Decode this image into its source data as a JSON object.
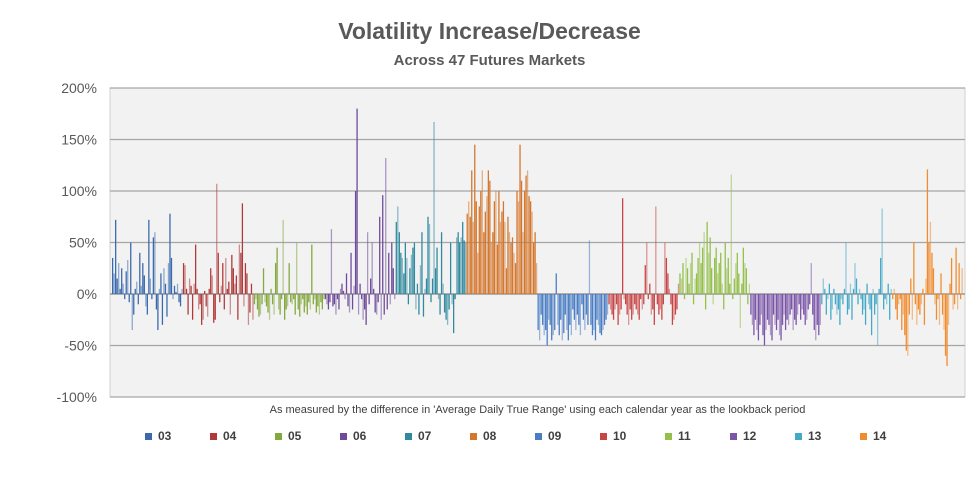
{
  "chart_data": {
    "type": "bar",
    "title": "Volatility Increase/Decrease",
    "subtitle": "Across 47 Futures Markets",
    "caption": "As measured by the difference in 'Average  Daily True Range' using each calendar year as the lookback period",
    "xlabel": "",
    "ylabel": "",
    "ylim": [
      -100,
      200
    ],
    "yticks": [
      -100,
      -50,
      0,
      50,
      100,
      150,
      200
    ],
    "ytick_labels": [
      "-100%",
      "-50%",
      "0%",
      "50%",
      "100%",
      "150%",
      "200%"
    ],
    "grid": true,
    "legend_placement": "bottom",
    "series": [
      {
        "name": "03",
        "color": "#3a6aad",
        "values": [
          35,
          20,
          72,
          15,
          30,
          5,
          25,
          10,
          -5,
          22,
          33,
          -8,
          50,
          -35,
          -20,
          5,
          12,
          -10,
          40,
          8,
          30,
          18,
          -12,
          -20,
          72,
          15,
          -5,
          55,
          60,
          -15,
          -35,
          5,
          20,
          -30,
          25,
          10,
          -22,
          30,
          78,
          35,
          -5,
          8,
          2,
          10,
          -8,
          -12,
          5
        ]
      },
      {
        "name": "04",
        "color": "#b03a3a",
        "values": [
          30,
          28,
          5,
          -20,
          15,
          8,
          -25,
          10,
          48,
          5,
          -15,
          -10,
          -30,
          -25,
          3,
          -12,
          -22,
          5,
          25,
          18,
          -28,
          -25,
          107,
          40,
          -8,
          8,
          30,
          -15,
          35,
          5,
          12,
          -20,
          38,
          25,
          10,
          18,
          -25,
          48,
          40,
          88,
          -12,
          30,
          20,
          -30,
          -18,
          10,
          -25
        ]
      },
      {
        "name": "05",
        "color": "#83a83e",
        "values": [
          -10,
          -5,
          -15,
          -22,
          -20,
          -10,
          25,
          -8,
          -12,
          -18,
          -25,
          5,
          -10,
          -20,
          30,
          45,
          -15,
          -20,
          -5,
          72,
          -25,
          -15,
          -12,
          30,
          -8,
          -10,
          -5,
          -20,
          50,
          -15,
          -22,
          -10,
          -5,
          -18,
          -12,
          -20,
          -8,
          -15,
          48,
          -10,
          -5,
          -18,
          -12,
          -20,
          -8,
          -15,
          -5
        ]
      },
      {
        "name": "06",
        "color": "#6e4a9a",
        "values": [
          -5,
          -10,
          -15,
          -8,
          63,
          -12,
          -10,
          -20,
          -5,
          -15,
          5,
          10,
          3,
          -5,
          20,
          -12,
          -18,
          40,
          -15,
          8,
          100,
          180,
          -20,
          10,
          -5,
          -25,
          -15,
          -30,
          60,
          -10,
          15,
          50,
          5,
          -18,
          -20,
          -8,
          75,
          -25,
          96,
          -20,
          132,
          -15,
          40,
          -10,
          50,
          25,
          -5
        ]
      },
      {
        "name": "07",
        "color": "#31899e",
        "values": [
          70,
          85,
          60,
          40,
          35,
          20,
          50,
          35,
          -10,
          25,
          38,
          45,
          50,
          -15,
          10,
          -20,
          28,
          60,
          -22,
          5,
          15,
          75,
          68,
          -8,
          15,
          167,
          25,
          45,
          -5,
          -20,
          60,
          10,
          -18,
          -25,
          -30,
          -15,
          50,
          -10,
          -38,
          -5,
          55,
          60,
          50,
          55,
          70,
          52,
          50
        ]
      },
      {
        "name": "08",
        "color": "#d4762c",
        "values": [
          78,
          90,
          75,
          120,
          70,
          145,
          90,
          40,
          85,
          100,
          120,
          60,
          80,
          95,
          120,
          110,
          50,
          60,
          90,
          100,
          48,
          100,
          70,
          80,
          90,
          70,
          25,
          75,
          60,
          50,
          55,
          40,
          30,
          100,
          90,
          145,
          110,
          60,
          100,
          115,
          120,
          95,
          90,
          80,
          50,
          60,
          30
        ]
      },
      {
        "name": "09",
        "color": "#4a7dc4",
        "values": [
          -35,
          -45,
          -20,
          -30,
          -40,
          -35,
          -50,
          -25,
          -30,
          -45,
          -40,
          -35,
          20,
          -30,
          -40,
          -25,
          -45,
          -38,
          -20,
          -35,
          -45,
          -30,
          -40,
          -15,
          -25,
          -35,
          -20,
          -30,
          -40,
          -10,
          -25,
          -35,
          -20,
          -30,
          52,
          -30,
          -40,
          -35,
          -45,
          -25,
          -30,
          -38,
          -40,
          -35,
          -30,
          -25,
          -20
        ]
      },
      {
        "name": "10",
        "color": "#c84545",
        "values": [
          -10,
          -15,
          -20,
          -25,
          -15,
          -10,
          -30,
          -20,
          -15,
          93,
          -5,
          -10,
          -20,
          -30,
          -15,
          -25,
          -20,
          -10,
          -15,
          -20,
          -25,
          -5,
          -15,
          -10,
          28,
          50,
          -5,
          10,
          -20,
          -15,
          -30,
          85,
          -10,
          -20,
          -15,
          -25,
          -10,
          50,
          35,
          20,
          5,
          -10,
          -30,
          -25,
          -20,
          -15,
          10
        ]
      },
      {
        "name": "11",
        "color": "#93bf4a",
        "values": [
          20,
          15,
          30,
          -5,
          35,
          25,
          10,
          30,
          40,
          -10,
          15,
          20,
          35,
          50,
          30,
          45,
          60,
          -15,
          70,
          40,
          55,
          25,
          -10,
          35,
          45,
          20,
          30,
          40,
          10,
          -15,
          50,
          25,
          35,
          10,
          116,
          -5,
          15,
          30,
          40,
          20,
          -33,
          10,
          45,
          30,
          25,
          -10,
          10
        ]
      },
      {
        "name": "12",
        "color": "#7b55a8",
        "values": [
          -20,
          -30,
          -40,
          -25,
          -35,
          -45,
          -30,
          -20,
          -40,
          -50,
          -35,
          -25,
          -30,
          -40,
          -45,
          -20,
          -30,
          -35,
          -25,
          -40,
          -45,
          -30,
          -20,
          -35,
          -25,
          -30,
          -20,
          -15,
          -35,
          -25,
          -30,
          -20,
          -10,
          -25,
          -15,
          -20,
          -30,
          -25,
          -15,
          -10,
          30,
          -20,
          -35,
          -45,
          -30,
          -40,
          -30
        ]
      },
      {
        "name": "13",
        "color": "#43a9c8",
        "values": [
          -10,
          15,
          5,
          -20,
          -5,
          10,
          -25,
          -15,
          5,
          -10,
          -20,
          -15,
          -30,
          -5,
          -10,
          5,
          50,
          -20,
          -15,
          10,
          -25,
          5,
          30,
          15,
          -10,
          5,
          -5,
          -20,
          -15,
          -30,
          10,
          -10,
          -15,
          -40,
          5,
          -20,
          -10,
          -50,
          5,
          35,
          83,
          -15,
          -5,
          -10,
          10,
          -25,
          5
        ]
      },
      {
        "name": "14",
        "color": "#f08c2e",
        "values": [
          -5,
          5,
          -15,
          -25,
          -10,
          -5,
          -35,
          -20,
          -40,
          -55,
          -60,
          -20,
          15,
          -25,
          50,
          -10,
          -30,
          -15,
          -20,
          -10,
          5,
          -30,
          15,
          121,
          50,
          70,
          40,
          25,
          -10,
          -25,
          -5,
          -30,
          20,
          -20,
          -35,
          -60,
          -70,
          -30,
          10,
          35,
          -15,
          -10,
          45,
          -15,
          30,
          -5,
          25
        ]
      }
    ]
  }
}
